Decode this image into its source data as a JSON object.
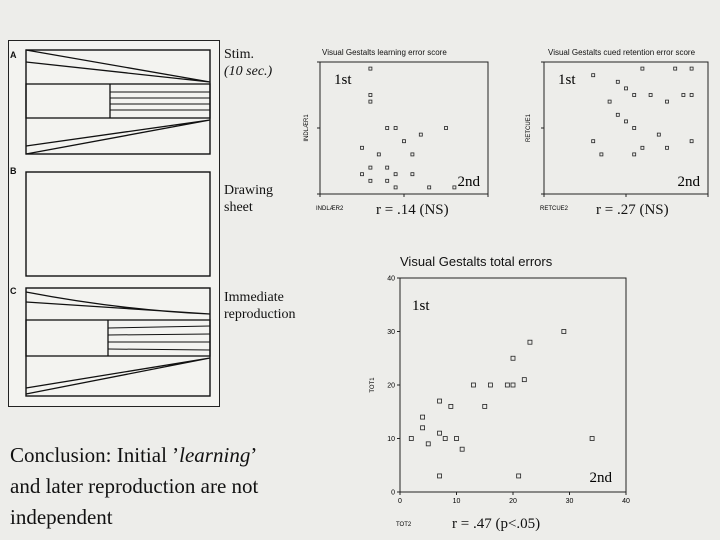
{
  "left_figure": {
    "panels": [
      {
        "letter": "A",
        "label": "Stim.",
        "sublabel": "(10 sec.)"
      },
      {
        "letter": "B",
        "label": "Drawing",
        "sublabel": "sheet"
      },
      {
        "letter": "C",
        "label": "Immediate",
        "sublabel": "reproduction"
      }
    ]
  },
  "conclusion": {
    "line1_pre": "Conclusion: Initial ’",
    "line1_em": "learning",
    "line1_post": "’",
    "line2": "and later reproduction are not",
    "line3": "independent"
  },
  "chart_data": [
    {
      "type": "scatter",
      "title": "Visual Gestalts learning error score",
      "xlabel": "INDLÆR2",
      "ylabel": "INDLÆR1",
      "annotations": [
        "1st",
        "2nd"
      ],
      "r_text": "r = .14 (NS)",
      "xlim": [
        0,
        20
      ],
      "ylim": [
        0,
        20
      ],
      "points": [
        [
          6,
          19
        ],
        [
          6,
          15
        ],
        [
          6,
          14
        ],
        [
          8,
          10
        ],
        [
          9,
          10
        ],
        [
          10,
          8
        ],
        [
          11,
          6
        ],
        [
          12,
          9
        ],
        [
          15,
          10
        ],
        [
          8,
          4
        ],
        [
          9,
          3
        ],
        [
          6,
          4
        ],
        [
          5,
          3
        ],
        [
          6,
          2
        ],
        [
          11,
          3
        ],
        [
          9,
          1
        ],
        [
          7,
          6
        ],
        [
          5,
          7
        ],
        [
          8,
          2
        ],
        [
          13,
          1
        ],
        [
          16,
          1
        ]
      ]
    },
    {
      "type": "scatter",
      "title": "Visual Gestalts cued retention error score",
      "xlabel": "RETCUE2",
      "ylabel": "RETCUE1",
      "annotations": [
        "1st",
        "2nd"
      ],
      "r_text": "r = .27 (NS)",
      "xlim": [
        0,
        20
      ],
      "ylim": [
        0,
        20
      ],
      "points": [
        [
          6,
          18
        ],
        [
          9,
          17
        ],
        [
          12,
          19
        ],
        [
          16,
          19
        ],
        [
          18,
          19
        ],
        [
          10,
          16
        ],
        [
          11,
          15
        ],
        [
          13,
          15
        ],
        [
          15,
          14
        ],
        [
          17,
          15
        ],
        [
          18,
          15
        ],
        [
          9,
          12
        ],
        [
          8,
          14
        ],
        [
          10,
          11
        ],
        [
          11,
          10
        ],
        [
          14,
          9
        ],
        [
          15,
          7
        ],
        [
          11,
          6
        ],
        [
          6,
          8
        ],
        [
          7,
          6
        ],
        [
          18,
          8
        ],
        [
          12,
          7
        ]
      ]
    },
    {
      "type": "scatter",
      "title": "Visual Gestalts total errors",
      "xlabel": "TOT2",
      "ylabel": "TOT1",
      "annotations": [
        "1st",
        "2nd"
      ],
      "r_text": "r = .47 (p<.05)",
      "xlim": [
        0,
        40
      ],
      "ylim": [
        0,
        40
      ],
      "xticks": [
        0,
        10,
        20,
        30,
        40
      ],
      "yticks": [
        0,
        10,
        20,
        30,
        40
      ],
      "points": [
        [
          2,
          10
        ],
        [
          4,
          14
        ],
        [
          4,
          12
        ],
        [
          5,
          9
        ],
        [
          7,
          11
        ],
        [
          7,
          17
        ],
        [
          8,
          10
        ],
        [
          9,
          16
        ],
        [
          10,
          10
        ],
        [
          11,
          8
        ],
        [
          13,
          20
        ],
        [
          15,
          16
        ],
        [
          16,
          20
        ],
        [
          19,
          20
        ],
        [
          20,
          25
        ],
        [
          20,
          20
        ],
        [
          21,
          3
        ],
        [
          22,
          21
        ],
        [
          23,
          28
        ],
        [
          29,
          30
        ],
        [
          34,
          10
        ],
        [
          7,
          3
        ]
      ]
    }
  ]
}
